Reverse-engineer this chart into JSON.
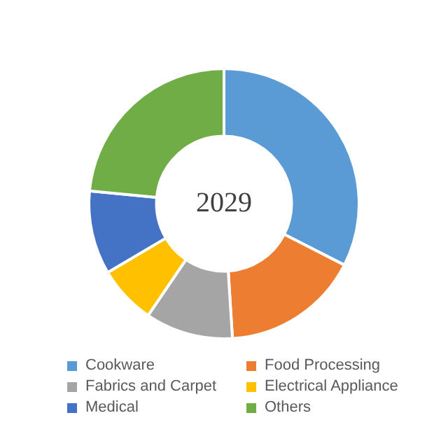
{
  "chart_data": {
    "type": "donut",
    "categories": [
      "Cookware",
      "Food Processing",
      "Fabrics and Carpet",
      "Electrical Appliance",
      "Medical",
      "Others"
    ],
    "values": [
      32.5,
      16.5,
      10.5,
      7,
      10,
      23.5
    ],
    "colors": [
      "#5b9bd5",
      "#ed7d31",
      "#a5a5a5",
      "#ffc000",
      "#4472c4",
      "#70ad47"
    ],
    "annotations": [
      "2029"
    ],
    "legend": "bottom"
  }
}
